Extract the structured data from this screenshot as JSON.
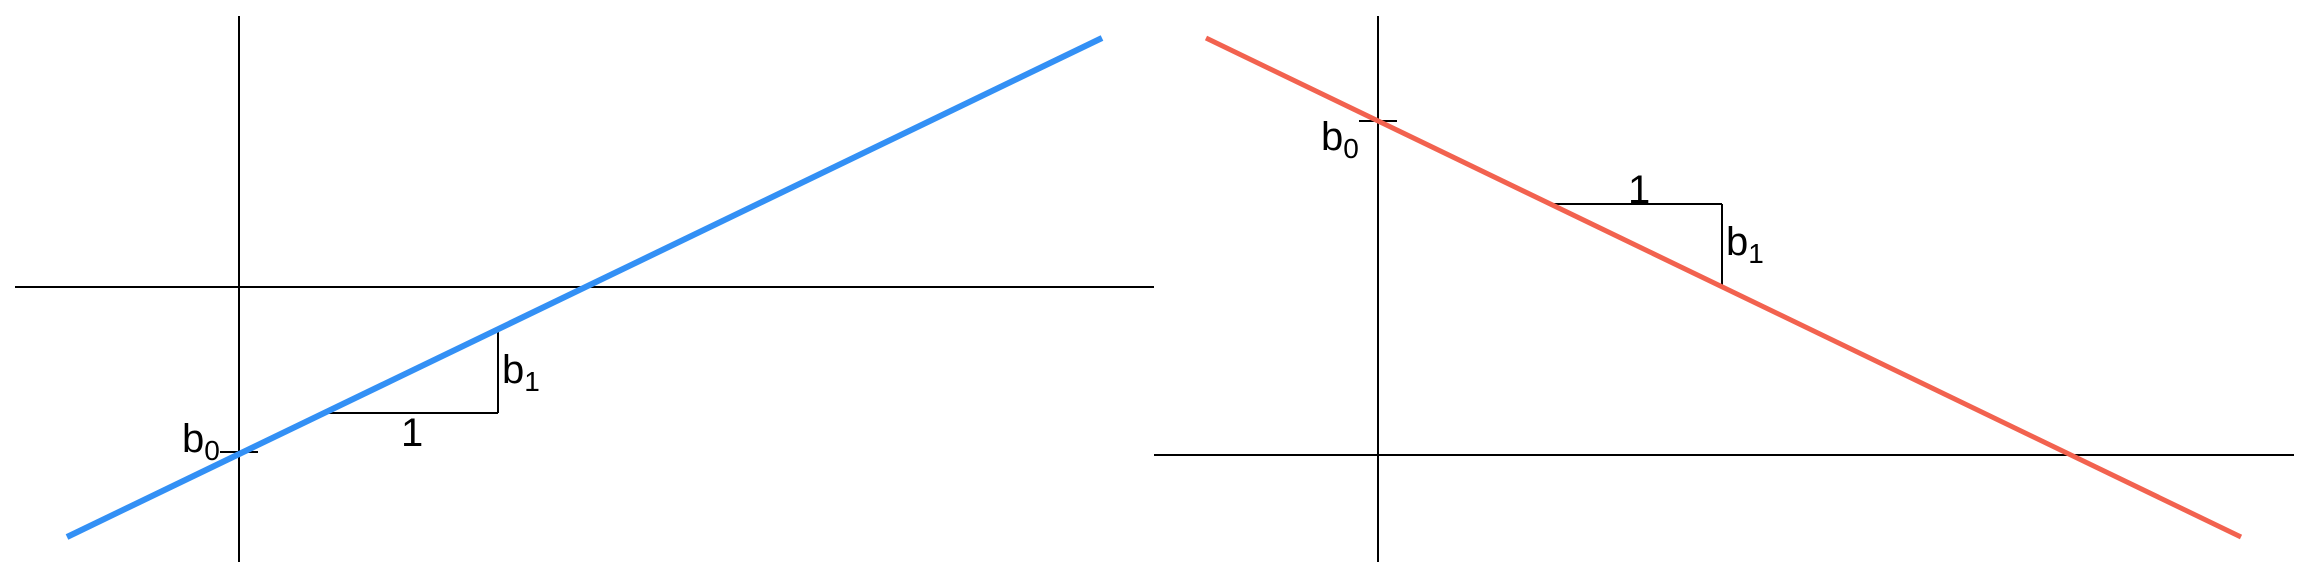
{
  "colors": {
    "left_line": "#3390f5",
    "right_line": "#f2624f",
    "axis": "#000000"
  },
  "left_panel": {
    "intercept_label": "b",
    "intercept_subscript": "0",
    "slope_label": "b",
    "slope_subscript": "1",
    "run_label": "1"
  },
  "right_panel": {
    "intercept_label": "b",
    "intercept_subscript": "0",
    "slope_label": "b",
    "slope_subscript": "1",
    "run_label": "1"
  }
}
